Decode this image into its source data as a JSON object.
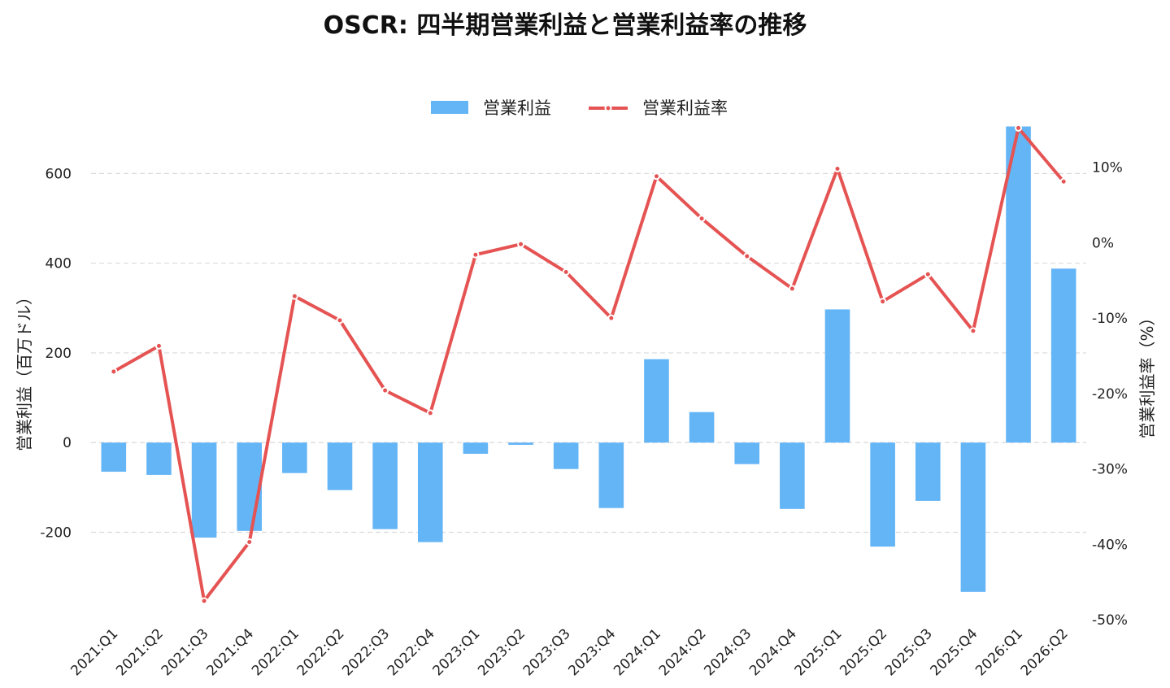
{
  "chart_data": {
    "type": "bar+line",
    "title": "OSCR: 四半期営業利益と営業利益率の推移",
    "categories": [
      "2021:Q1",
      "2021:Q2",
      "2021:Q3",
      "2021:Q4",
      "2022:Q1",
      "2022:Q2",
      "2022:Q3",
      "2022:Q4",
      "2023:Q1",
      "2023:Q2",
      "2023:Q3",
      "2023:Q4",
      "2024:Q1",
      "2024:Q2",
      "2024:Q3",
      "2024:Q4",
      "2025:Q1",
      "2025:Q2",
      "2025:Q3",
      "2025:Q4",
      "2026:Q1",
      "2026:Q2"
    ],
    "series": [
      {
        "name": "営業利益",
        "type": "bar",
        "axis": "left",
        "color": "#64b5f6",
        "values": [
          -65,
          -72,
          -212,
          -197,
          -68,
          -106,
          -193,
          -222,
          -25,
          -5,
          -59,
          -146,
          186,
          68,
          -48,
          -148,
          297,
          -232,
          -130,
          -333,
          705,
          388
        ]
      },
      {
        "name": "営業利益率",
        "type": "line",
        "axis": "right",
        "color": "#e55353",
        "values": [
          -17.1,
          -13.7,
          -47.5,
          -39.7,
          -7.1,
          -10.3,
          -19.6,
          -22.6,
          -1.6,
          -0.2,
          -3.9,
          -10.0,
          8.8,
          3.2,
          -1.8,
          -6.1,
          9.8,
          -7.8,
          -4.2,
          -11.7,
          15.2,
          8.1
        ]
      }
    ],
    "y_left": {
      "label": "営業利益（百万ドル）",
      "ylim": [
        -395,
        715
      ],
      "ticks": [
        -200,
        0,
        200,
        400,
        600
      ]
    },
    "y_right": {
      "label": "営業利益率（%）",
      "ylim": [
        -50,
        16
      ],
      "ticks": [
        -50,
        -40,
        -30,
        -20,
        -10,
        0,
        10
      ],
      "tick_suffix": "%"
    },
    "grid": true,
    "legend_position": "top-center"
  }
}
